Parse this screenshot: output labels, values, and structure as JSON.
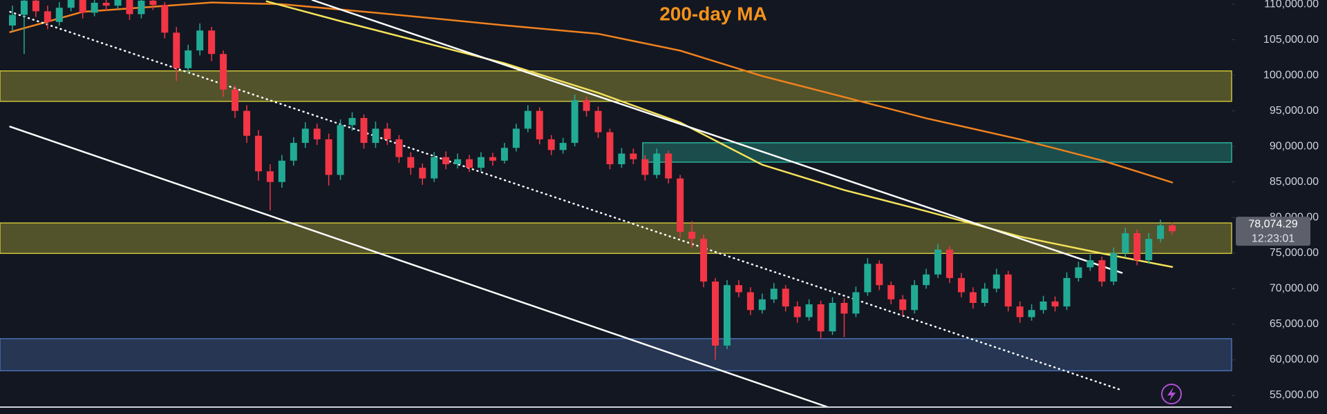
{
  "chart_data": {
    "type": "candlestick",
    "ylim": [
      52380,
      110590
    ],
    "yticks": [
      {
        "value": 55000,
        "label": "55,000.00"
      },
      {
        "value": 60000,
        "label": "60,000.00"
      },
      {
        "value": 65000,
        "label": "65,000.00"
      },
      {
        "value": 70000,
        "label": "70,000.00"
      },
      {
        "value": 75000,
        "label": "75,000.00"
      },
      {
        "value": 80000,
        "label": "80,000.00"
      },
      {
        "value": 85000,
        "label": "85,000.00"
      },
      {
        "value": 90000,
        "label": "90,000.00"
      },
      {
        "value": 95000,
        "label": "95,000.00"
      },
      {
        "value": 100000,
        "label": "100,000.00"
      },
      {
        "value": 105000,
        "label": "105,000.00"
      },
      {
        "value": 110000,
        "label": "110,000.00"
      }
    ],
    "up_color": "#22ab94",
    "down_color": "#f23645",
    "candles": {
      "open": [
        107000,
        108500,
        110500,
        109000,
        107500,
        109500,
        110800,
        108800,
        110200,
        109800,
        110900,
        108600,
        110500,
        109900,
        106000,
        101000,
        103500,
        106300,
        103000,
        98000,
        95000,
        91500,
        86500,
        85000,
        88000,
        90500,
        92500,
        91000,
        86000,
        93000,
        94000,
        90500,
        92500,
        91000,
        88500,
        87000,
        85500,
        88500,
        87500,
        88200,
        87000,
        88500,
        88000,
        89800,
        92500,
        95000,
        91000,
        89500,
        90500,
        96500,
        95000,
        92000,
        87500,
        89000,
        88200,
        86000,
        89000,
        85500,
        78000,
        77000,
        71000,
        62000,
        70500,
        69500,
        67000,
        68500,
        70000,
        67500,
        66000,
        67800,
        64000,
        68000,
        66500,
        69500,
        73500,
        70500,
        68500,
        67000,
        70500,
        72000,
        75500,
        71500,
        69500,
        68000,
        70000,
        72000,
        67500,
        66000,
        67000,
        68200,
        67500,
        71500,
        73000,
        74000,
        71000,
        75000,
        77800,
        74000,
        77000,
        78900
      ],
      "high": [
        109800,
        111500,
        111200,
        109800,
        110300,
        111600,
        111300,
        111000,
        111000,
        111800,
        111400,
        111200,
        111400,
        110300,
        106800,
        104300,
        107300,
        106800,
        103500,
        98600,
        95800,
        92300,
        87500,
        88800,
        91300,
        93400,
        93200,
        91800,
        93800,
        94800,
        94500,
        93500,
        93300,
        91600,
        89200,
        87600,
        89200,
        89300,
        89000,
        88800,
        89200,
        89100,
        90500,
        93200,
        95800,
        95500,
        91600,
        91200,
        97300,
        97000,
        95600,
        92500,
        89800,
        89700,
        88800,
        89700,
        89400,
        86000,
        79500,
        77600,
        71500,
        71200,
        71200,
        70200,
        69300,
        70800,
        70500,
        68200,
        68500,
        68300,
        68800,
        68700,
        70300,
        74300,
        74000,
        71000,
        69100,
        71200,
        72800,
        76300,
        76000,
        72200,
        70200,
        70800,
        72800,
        72500,
        68200,
        67800,
        69000,
        68900,
        72300,
        73800,
        74800,
        74500,
        75800,
        78600,
        78300,
        77800,
        79700,
        79300
      ],
      "low": [
        106200,
        103000,
        108200,
        106500,
        107000,
        109000,
        108000,
        108300,
        109000,
        109300,
        107800,
        108000,
        109200,
        105200,
        99200,
        100200,
        102800,
        102000,
        97000,
        94000,
        90500,
        85200,
        81000,
        84200,
        87300,
        89800,
        90200,
        84500,
        85300,
        92200,
        89700,
        89800,
        90200,
        87700,
        86000,
        84600,
        85000,
        86800,
        86900,
        86400,
        86500,
        87300,
        87600,
        89300,
        92000,
        90300,
        88800,
        89000,
        90000,
        94200,
        91200,
        86800,
        87000,
        87500,
        85200,
        85500,
        84800,
        77200,
        75800,
        70200,
        60000,
        61500,
        68800,
        66300,
        66500,
        68000,
        66800,
        65200,
        65500,
        63000,
        63500,
        63200,
        66000,
        69000,
        69800,
        67800,
        66200,
        66500,
        70000,
        71500,
        70800,
        68800,
        67200,
        67500,
        69500,
        66800,
        65200,
        65500,
        66500,
        66800,
        67000,
        71000,
        72500,
        70300,
        70500,
        74500,
        73300,
        73500,
        76500,
        77600
      ],
      "close": [
        108500,
        110500,
        109000,
        107500,
        109500,
        110800,
        108800,
        110200,
        109800,
        110900,
        108600,
        110500,
        109900,
        106000,
        101000,
        103500,
        106300,
        103000,
        98000,
        95000,
        91500,
        86500,
        85000,
        88000,
        90500,
        92500,
        91000,
        86000,
        93000,
        94000,
        90500,
        92500,
        91000,
        88500,
        87000,
        85500,
        88500,
        87500,
        88200,
        87000,
        88500,
        88000,
        89800,
        92500,
        95000,
        91000,
        89500,
        90500,
        96500,
        95000,
        92000,
        87500,
        89000,
        88200,
        86000,
        89000,
        85500,
        78000,
        77000,
        71000,
        62000,
        70500,
        69500,
        67000,
        68500,
        70000,
        67500,
        66000,
        67800,
        64000,
        68000,
        66500,
        69500,
        73500,
        70500,
        68500,
        67000,
        70500,
        72000,
        75500,
        71500,
        69500,
        68000,
        70000,
        72000,
        67500,
        66000,
        67000,
        68200,
        67500,
        71500,
        73000,
        74000,
        71000,
        75000,
        77800,
        74000,
        77000,
        78900,
        78074.29
      ]
    },
    "last_price": {
      "value": 78074.29,
      "label": "78,074.29"
    },
    "countdown": "12:23:01",
    "zones": [
      {
        "low": 96340,
        "high": 100620,
        "color": "#c9c23a"
      },
      {
        "low": 74960,
        "high": 79240,
        "color": "#c9c23a"
      },
      {
        "low": 87790,
        "high": 90520,
        "color": "#2bb39a",
        "x_start": 53.8
      },
      {
        "low": 58460,
        "high": 62970,
        "color": "#4a6fb0"
      }
    ],
    "lines": [
      {
        "name": "200-day MA",
        "color": "#f0821e",
        "x": [
          -0.2,
          6,
          17,
          23,
          31,
          42,
          50,
          57,
          64,
          71,
          78,
          86,
          93,
          99
        ],
        "values": [
          106080,
          108930,
          110240,
          110000,
          108800,
          107030,
          105840,
          103470,
          99900,
          96940,
          93960,
          91000,
          88030,
          84940
        ]
      },
      {
        "color": "#f5e35a",
        "x": [
          21.7,
          28,
          35,
          42,
          50,
          57,
          64,
          71,
          78,
          86,
          93,
          99
        ],
        "values": [
          110400,
          107620,
          104660,
          101690,
          97530,
          93370,
          87430,
          83870,
          80900,
          77330,
          74960,
          73060
        ]
      },
      {
        "color": "#ffffff",
        "dash": "dotted",
        "x": [
          -0.2,
          94.7
        ],
        "values": [
          108930,
          55720
        ]
      },
      {
        "color": "#ffffff",
        "x": [
          25.6,
          94.7
        ],
        "values": [
          110590,
          72230
        ]
      },
      {
        "color": "#ffffff",
        "x": [
          -0.2,
          69.6
        ],
        "values": [
          92780,
          53350
        ]
      }
    ]
  }
}
